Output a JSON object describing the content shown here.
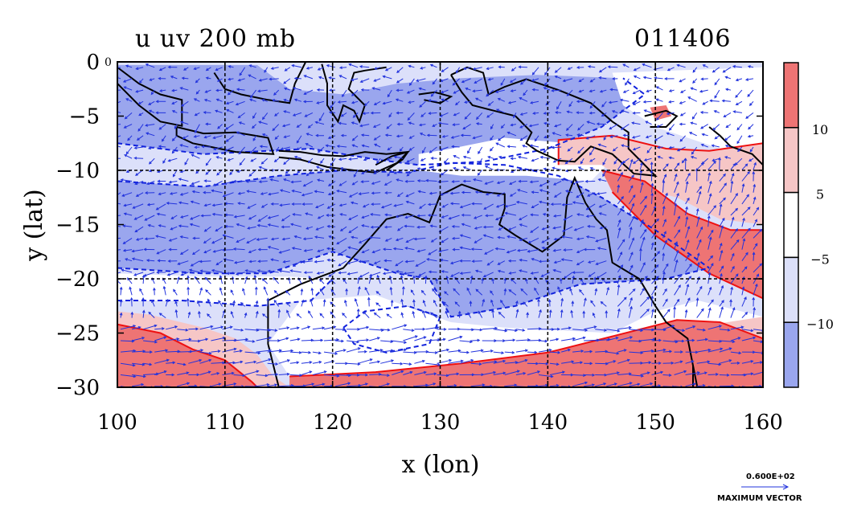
{
  "chart_data": {
    "type": "heatmap",
    "title_left": "u uv 200 mb",
    "title_right": "011406",
    "xlabel": "x (lon)",
    "ylabel": "y (lat)",
    "xlim": [
      100,
      160
    ],
    "ylim": [
      -30,
      0
    ],
    "x_ticks": [
      "100",
      "110",
      "120",
      "130",
      "140",
      "150",
      "160"
    ],
    "y_ticks": [
      "0",
      "−5",
      "−10",
      "−15",
      "−20",
      "−25",
      "−30"
    ],
    "grid": true,
    "grid_lines_x": [
      110,
      120,
      130,
      140,
      150
    ],
    "grid_lines_y": [
      -10,
      -20
    ],
    "colorbar": {
      "labels": [
        "10",
        "5",
        "−5",
        "−10"
      ],
      "levels": [
        -15,
        -10,
        -5,
        5,
        10,
        15
      ],
      "colors": [
        "#9aa6ee",
        "#dce0fa",
        "#ffffff",
        "#f6c6c6",
        "#ee7474"
      ]
    },
    "vector_scale": {
      "value_label": "0.600E+02",
      "caption": "MAXIMUM VECTOR"
    },
    "contour_colors": {
      "positive": "#ee1111",
      "negative": "#1122dd"
    },
    "corner_mark": "0",
    "coastline_color": "#000000",
    "arrow_color": "#2233dd"
  }
}
